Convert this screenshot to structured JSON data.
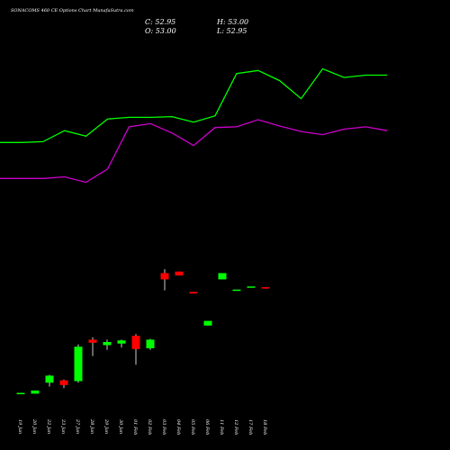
{
  "chart_data": {
    "type": "candlestick",
    "title": "SONACOMS 460  CE Options  Chart MunafaSutra.com",
    "ohlc_labels": {
      "close": "C: 52.95",
      "open": "O: 53.00",
      "high": "H: 53.00",
      "low": "L: 52.95"
    },
    "colors": {
      "up": "#00ff00",
      "down": "#ff0000",
      "band_upper": "#00ff00",
      "band_lower": "#cc00cc",
      "background": "#000000",
      "text": "#ffffff"
    },
    "categories": [
      "19 Jan",
      "20 Jan",
      "22 Jan",
      "23 Jan",
      "27 Jan",
      "28 Jan",
      "29 Jan",
      "30 Jan",
      "01 Feb",
      "02 Feb",
      "03 Feb",
      "04 Feb",
      "05 Feb",
      "06 Feb",
      "11 Feb",
      "12 Feb",
      "17 Feb",
      "18 Feb"
    ],
    "candles": [
      {
        "o": 4,
        "h": 4,
        "l": 4,
        "c": 4,
        "dir": "up"
      },
      {
        "o": 3,
        "h": 7,
        "l": 3,
        "c": 7,
        "dir": "up"
      },
      {
        "o": 17,
        "h": 27,
        "l": 12,
        "c": 26,
        "dir": "up"
      },
      {
        "o": 20,
        "h": 21,
        "l": 10,
        "c": 14,
        "dir": "down"
      },
      {
        "o": 19,
        "h": 66,
        "l": 17,
        "c": 63,
        "dir": "up"
      },
      {
        "o": 72,
        "h": 75,
        "l": 51,
        "c": 68,
        "dir": "down"
      },
      {
        "o": 65,
        "h": 72,
        "l": 59,
        "c": 69,
        "dir": "up"
      },
      {
        "o": 67,
        "h": 72,
        "l": 62,
        "c": 71,
        "dir": "up"
      },
      {
        "o": 77,
        "h": 79,
        "l": 40,
        "c": 60,
        "dir": "down"
      },
      {
        "o": 61,
        "h": 73,
        "l": 59,
        "c": 72,
        "dir": "up"
      },
      {
        "o": 157,
        "h": 162,
        "l": 135,
        "c": 149,
        "dir": "down"
      },
      {
        "o": 159,
        "h": 159,
        "l": 154,
        "c": 154,
        "dir": "down"
      },
      {
        "o": 133,
        "h": 133,
        "l": 131,
        "c": 131,
        "dir": "down"
      },
      {
        "o": 90,
        "h": 96,
        "l": 90,
        "c": 96,
        "dir": "up"
      },
      {
        "o": 149,
        "h": 157,
        "l": 149,
        "c": 157,
        "dir": "up"
      },
      {
        "o": 136,
        "h": 136,
        "l": 136,
        "c": 136,
        "dir": "up"
      },
      {
        "o": 140,
        "h": 140,
        "l": 140,
        "c": 140,
        "dir": "up"
      },
      {
        "o": 139,
        "h": 139,
        "l": 138,
        "c": 138,
        "dir": "down"
      }
    ],
    "upper_band": [
      324,
      324,
      325,
      339,
      332,
      354,
      356,
      356,
      357,
      350,
      358,
      412,
      416,
      403,
      380,
      418,
      407,
      410,
      410
    ],
    "lower_band": [
      278,
      278,
      278,
      280,
      273,
      290,
      344,
      348,
      336,
      320,
      343,
      344,
      353,
      345,
      338,
      334,
      341,
      344,
      339
    ],
    "ylim": [
      0,
      460
    ]
  }
}
